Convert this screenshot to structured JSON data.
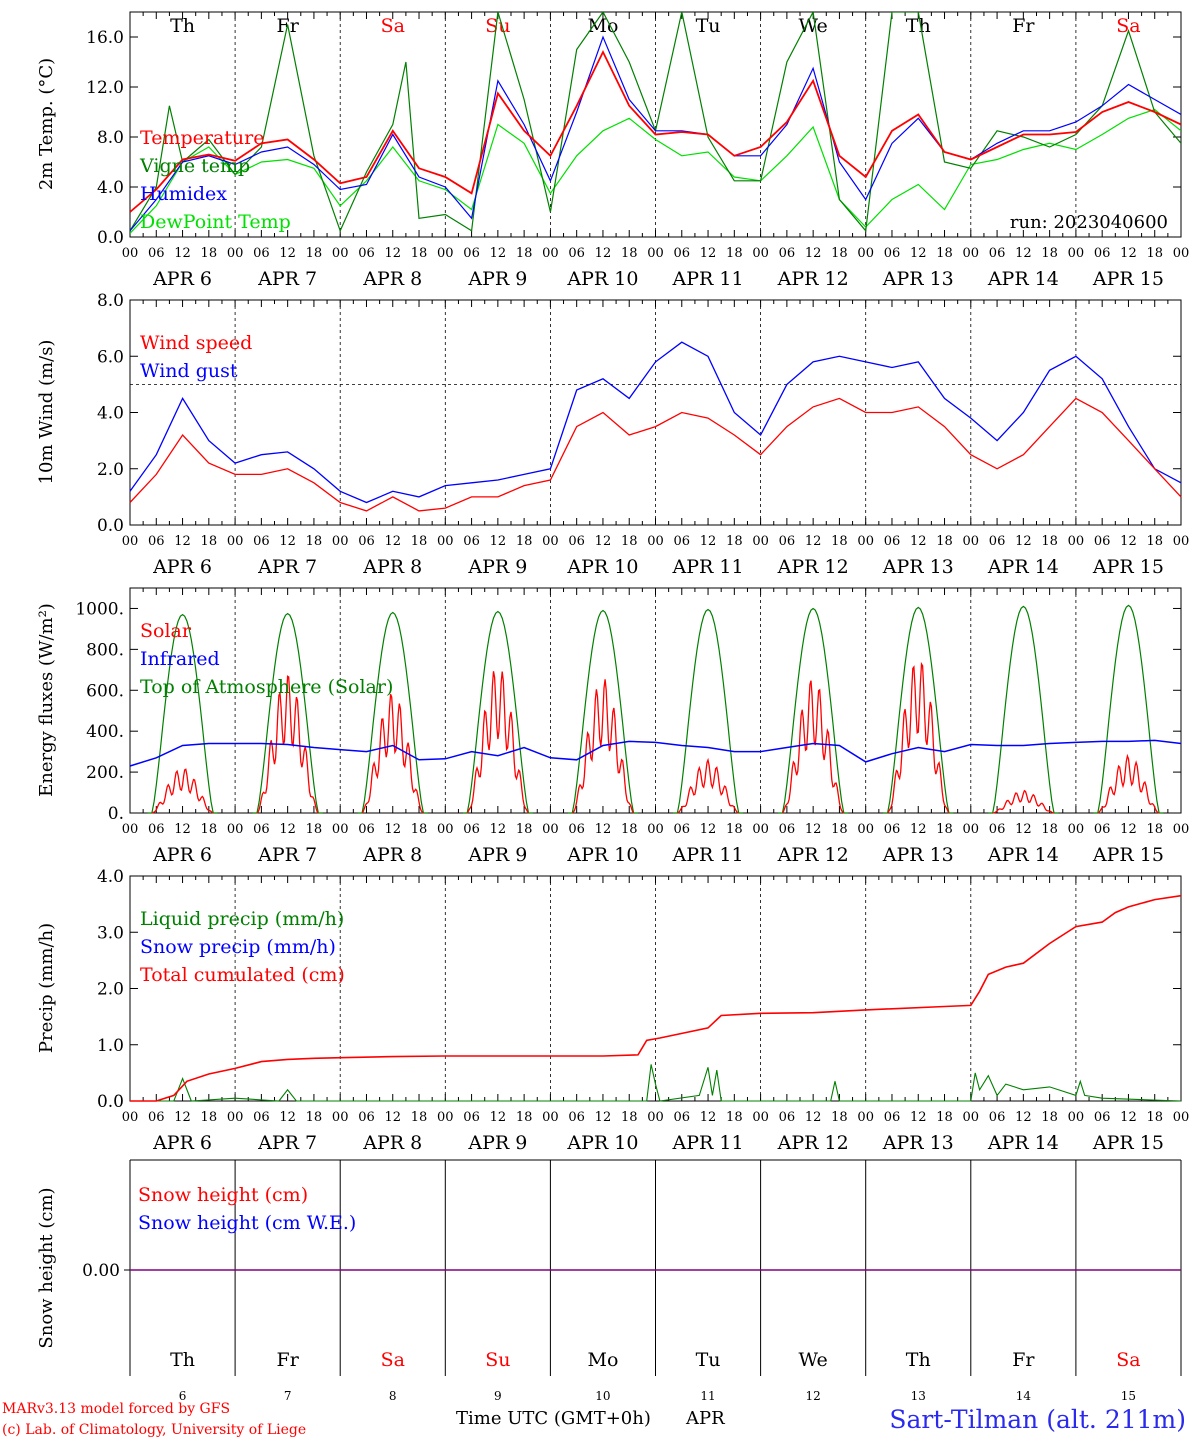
{
  "run_label": "run: 2023040600",
  "days": [
    {
      "dow": "Th",
      "date": "APR  6",
      "num": "6",
      "weekend": false
    },
    {
      "dow": "Fr",
      "date": "APR  7",
      "num": "7",
      "weekend": false
    },
    {
      "dow": "Sa",
      "date": "APR  8",
      "num": "8",
      "weekend": true
    },
    {
      "dow": "Su",
      "date": "APR  9",
      "num": "9",
      "weekend": true
    },
    {
      "dow": "Mo",
      "date": "APR 10",
      "num": "10",
      "weekend": false
    },
    {
      "dow": "Tu",
      "date": "APR 11",
      "num": "11",
      "weekend": false
    },
    {
      "dow": "We",
      "date": "APR 12",
      "num": "12",
      "weekend": false
    },
    {
      "dow": "Th",
      "date": "APR 13",
      "num": "13",
      "weekend": false
    },
    {
      "dow": "Fr",
      "date": "APR 14",
      "num": "14",
      "weekend": false
    },
    {
      "dow": "Sa",
      "date": "APR 15",
      "num": "15",
      "weekend": true
    }
  ],
  "hour_labels": [
    "00",
    "06",
    "12",
    "18"
  ],
  "colors": {
    "red": "#ff0000",
    "green": "#008000",
    "blue": "#0000ff",
    "lightgreen": "#00e000",
    "purple": "#800080",
    "weekend": "#ff0000"
  },
  "footer": {
    "credit1": "MARv3.13 model forced by GFS",
    "credit2": "(c) Lab. of Climatology, University of Liege",
    "axis_title": "Time UTC (GMT+0h)",
    "month": "APR",
    "station": "Sart-Tilman (alt. 211m)"
  },
  "chart_data": [
    {
      "type": "line",
      "ylabel": "2m Temp. (°C)",
      "ylim": [
        0,
        18
      ],
      "yticks": [
        "0.0",
        "4.0",
        "8.0",
        "12.0",
        "16.0"
      ],
      "x_unit": "hours since 2023-04-06 00 UTC",
      "legend": [
        {
          "label": "Temperature",
          "color": "#ff0000"
        },
        {
          "label": "Vigne temp",
          "color": "#008000"
        },
        {
          "label": "Humidex",
          "color": "#0000ff"
        },
        {
          "label": "DewPoint Temp",
          "color": "#00e000"
        }
      ],
      "series": [
        {
          "name": "Temperature",
          "color": "#ff0000",
          "x": [
            0,
            6,
            12,
            18,
            24,
            30,
            36,
            42,
            48,
            54,
            60,
            66,
            72,
            78,
            84,
            90,
            96,
            102,
            108,
            114,
            120,
            126,
            132,
            138,
            144,
            150,
            156,
            162,
            168,
            174,
            180,
            186,
            192,
            198,
            204,
            210,
            216,
            222,
            228,
            234,
            240
          ],
          "y": [
            2,
            3.8,
            6.2,
            6.6,
            6.1,
            7.5,
            7.8,
            6.2,
            4.3,
            4.8,
            8.5,
            5.5,
            4.8,
            3.5,
            11.5,
            8.5,
            6.5,
            10.5,
            14.8,
            10.5,
            8.2,
            8.4,
            8.2,
            6.5,
            7.2,
            9.2,
            12.5,
            6.5,
            4.8,
            8.5,
            9.8,
            6.8,
            6.2,
            7.2,
            8.2,
            8.2,
            8.4,
            10,
            10.8,
            10,
            9
          ]
        },
        {
          "name": "Vigne temp",
          "color": "#008000",
          "x": [
            0,
            6,
            9,
            12,
            18,
            24,
            30,
            36,
            42,
            48,
            54,
            60,
            63,
            66,
            72,
            78,
            84,
            90,
            96,
            102,
            108,
            114,
            120,
            126,
            132,
            138,
            144,
            150,
            156,
            162,
            168,
            174,
            180,
            186,
            192,
            198,
            204,
            210,
            216,
            222,
            228,
            234,
            240
          ],
          "y": [
            0.5,
            4,
            10.5,
            6,
            7.8,
            5,
            7.2,
            17,
            6.5,
            0.5,
            5.2,
            9,
            14,
            1.5,
            1.8,
            0.5,
            18,
            11,
            2,
            15,
            18,
            14,
            8.5,
            18,
            8,
            4.5,
            4.5,
            14,
            18,
            3,
            0.5,
            18,
            18,
            6,
            5.5,
            8.5,
            8,
            7.2,
            8.2,
            10.5,
            16.5,
            10,
            7.5
          ]
        },
        {
          "name": "Humidex",
          "color": "#0000ff",
          "x": [
            0,
            6,
            12,
            18,
            24,
            30,
            36,
            42,
            48,
            54,
            60,
            66,
            72,
            78,
            84,
            90,
            96,
            102,
            108,
            114,
            120,
            126,
            132,
            138,
            144,
            150,
            156,
            162,
            168,
            174,
            180,
            186,
            192,
            198,
            204,
            210,
            216,
            222,
            228,
            234,
            240
          ],
          "y": [
            0.5,
            3,
            6,
            6.5,
            5.8,
            6.8,
            7.2,
            5.8,
            3.8,
            4.2,
            8.2,
            4.8,
            4,
            1.5,
            12.5,
            9,
            4.5,
            10,
            16,
            11,
            8.5,
            8.5,
            8.2,
            6.5,
            6.5,
            9,
            13.5,
            6,
            3,
            7.5,
            9.5,
            6.8,
            6.2,
            7.5,
            8.5,
            8.5,
            9.2,
            10.5,
            12.2,
            11,
            9.8
          ]
        },
        {
          "name": "DewPoint Temp",
          "color": "#00e000",
          "x": [
            0,
            6,
            12,
            18,
            24,
            30,
            36,
            42,
            48,
            54,
            60,
            66,
            72,
            78,
            84,
            90,
            96,
            102,
            108,
            114,
            120,
            126,
            132,
            138,
            144,
            150,
            156,
            162,
            168,
            174,
            180,
            186,
            192,
            198,
            204,
            210,
            216,
            222,
            228,
            234,
            240
          ],
          "y": [
            0.3,
            2.5,
            6,
            7.2,
            5,
            6,
            6.2,
            5.5,
            2.5,
            4.5,
            7.2,
            4.5,
            3.8,
            2.2,
            9,
            7.5,
            3.5,
            6.5,
            8.5,
            9.5,
            7.8,
            6.5,
            6.8,
            4.8,
            4.5,
            6.5,
            8.8,
            3,
            0.8,
            3,
            4.2,
            2.2,
            5.8,
            6.2,
            7,
            7.5,
            7,
            8.2,
            9.5,
            10.2,
            8.5
          ]
        }
      ]
    },
    {
      "type": "line",
      "ylabel": "10m Wind (m/s)",
      "ylim": [
        0,
        8
      ],
      "yticks": [
        "0.0",
        "2.0",
        "4.0",
        "6.0",
        "8.0"
      ],
      "reference_line": 5,
      "legend": [
        {
          "label": "Wind speed",
          "color": "#ff0000"
        },
        {
          "label": "Wind gust",
          "color": "#0000ff"
        }
      ],
      "series": [
        {
          "name": "Wind speed",
          "color": "#ff0000",
          "x": [
            0,
            6,
            12,
            18,
            24,
            30,
            36,
            42,
            48,
            54,
            60,
            66,
            72,
            78,
            84,
            90,
            96,
            102,
            108,
            114,
            120,
            126,
            132,
            138,
            144,
            150,
            156,
            162,
            168,
            174,
            180,
            186,
            192,
            198,
            204,
            210,
            216,
            222,
            228,
            234,
            240
          ],
          "y": [
            0.8,
            1.8,
            3.2,
            2.2,
            1.8,
            1.8,
            2,
            1.5,
            0.8,
            0.5,
            1,
            0.5,
            0.6,
            1,
            1,
            1.4,
            1.6,
            3.5,
            4,
            3.2,
            3.5,
            4,
            3.8,
            3.2,
            2.5,
            3.5,
            4.2,
            4.5,
            4,
            4,
            4.2,
            3.5,
            2.5,
            2,
            2.5,
            3.5,
            4.5,
            4,
            3,
            2,
            1
          ]
        },
        {
          "name": "Wind gust",
          "color": "#0000ff",
          "x": [
            0,
            6,
            12,
            18,
            24,
            30,
            36,
            42,
            48,
            54,
            60,
            66,
            72,
            78,
            84,
            90,
            96,
            102,
            108,
            114,
            120,
            126,
            132,
            138,
            144,
            150,
            156,
            162,
            168,
            174,
            180,
            186,
            192,
            198,
            204,
            210,
            216,
            222,
            228,
            234,
            240
          ],
          "y": [
            1.2,
            2.5,
            4.5,
            3,
            2.2,
            2.5,
            2.6,
            2,
            1.2,
            0.8,
            1.2,
            1,
            1.4,
            1.5,
            1.6,
            1.8,
            2,
            4.8,
            5.2,
            4.5,
            5.8,
            6.5,
            6,
            4,
            3.2,
            5,
            5.8,
            6,
            5.8,
            5.6,
            5.8,
            4.5,
            3.8,
            3,
            4,
            5.5,
            6,
            5.2,
            3.5,
            2,
            1.5
          ]
        }
      ]
    },
    {
      "type": "line",
      "ylabel": "Energy fluxes (W/m²)",
      "ylim": [
        0,
        1100
      ],
      "yticks": [
        "0.",
        "200.",
        "400.",
        "600.",
        "800.",
        "1000."
      ],
      "legend": [
        {
          "label": "Solar",
          "color": "#ff0000"
        },
        {
          "label": "Infrared",
          "color": "#0000ff"
        },
        {
          "label": "Top of Atmosphere (Solar)",
          "color": "#008000"
        }
      ],
      "top_of_atmosphere_daily_peaks": [
        970,
        975,
        980,
        985,
        990,
        995,
        1000,
        1005,
        1010,
        1015
      ],
      "solar_daily_peaks": [
        220,
        680,
        590,
        720,
        660,
        260,
        660,
        760,
        110,
        280
      ],
      "series": [
        {
          "name": "Infrared",
          "color": "#0000ff",
          "x": [
            0,
            6,
            12,
            18,
            24,
            30,
            36,
            42,
            48,
            54,
            60,
            66,
            72,
            78,
            84,
            90,
            96,
            102,
            108,
            114,
            120,
            126,
            132,
            138,
            144,
            150,
            156,
            162,
            168,
            174,
            180,
            186,
            192,
            198,
            204,
            210,
            216,
            222,
            228,
            234,
            240
          ],
          "y": [
            230,
            270,
            330,
            340,
            340,
            340,
            335,
            320,
            310,
            300,
            330,
            260,
            265,
            300,
            280,
            320,
            270,
            260,
            330,
            350,
            345,
            330,
            320,
            300,
            300,
            320,
            340,
            330,
            250,
            290,
            320,
            300,
            335,
            330,
            330,
            340,
            345,
            350,
            350,
            355,
            340
          ]
        }
      ]
    },
    {
      "type": "line",
      "ylabel": "Precip (mm/h)",
      "ylim": [
        0,
        4
      ],
      "yticks": [
        "0.0",
        "1.0",
        "2.0",
        "3.0",
        "4.0"
      ],
      "legend": [
        {
          "label": "Liquid precip (mm/h)",
          "color": "#008000"
        },
        {
          "label": "Snow precip (mm/h)",
          "color": "#0000ff"
        },
        {
          "label": "Total cumulated (cm)",
          "color": "#ff0000"
        }
      ],
      "series": [
        {
          "name": "Total cumulated (cm)",
          "color": "#ff0000",
          "x": [
            0,
            6,
            10,
            13,
            18,
            24,
            30,
            36,
            42,
            48,
            60,
            72,
            84,
            96,
            108,
            116,
            118,
            121,
            132,
            135,
            144,
            156,
            168,
            186,
            192,
            194,
            196,
            200,
            204,
            210,
            216,
            222,
            225,
            228,
            234,
            240
          ],
          "y": [
            0,
            0,
            0.1,
            0.35,
            0.48,
            0.58,
            0.7,
            0.74,
            0.76,
            0.77,
            0.79,
            0.8,
            0.8,
            0.8,
            0.8,
            0.82,
            1.08,
            1.12,
            1.3,
            1.52,
            1.56,
            1.57,
            1.62,
            1.68,
            1.7,
            1.95,
            2.25,
            2.38,
            2.45,
            2.8,
            3.1,
            3.18,
            3.35,
            3.45,
            3.58,
            3.65
          ]
        },
        {
          "name": "Liquid precip (mm/h)",
          "color": "#008000",
          "x": [
            0,
            10,
            12,
            14,
            24,
            34,
            36,
            38,
            118,
            119,
            120,
            121,
            130,
            132,
            133,
            134,
            135,
            160,
            161,
            162,
            192,
            193,
            194,
            196,
            198,
            200,
            204,
            210,
            216,
            217,
            218,
            222,
            240
          ],
          "y": [
            0,
            0,
            0.4,
            0,
            0.05,
            0,
            0.2,
            0,
            0,
            0.65,
            0.3,
            0,
            0.1,
            0.6,
            0.1,
            0.55,
            0,
            0,
            0.35,
            0,
            0,
            0.5,
            0.2,
            0.45,
            0.1,
            0.3,
            0.2,
            0.25,
            0.1,
            0.35,
            0.1,
            0.05,
            0
          ]
        }
      ]
    },
    {
      "type": "line",
      "ylabel": "Snow height (cm)",
      "yticks": [
        "0.00"
      ],
      "legend": [
        {
          "label": "Snow height (cm)",
          "color": "#ff0000"
        },
        {
          "label": "Snow height (cm W.E.)",
          "color": "#0000ff"
        }
      ],
      "series": [
        {
          "name": "Snow height (cm)",
          "color": "#ff0000",
          "x": [
            0,
            240
          ],
          "y": [
            0,
            0
          ]
        },
        {
          "name": "Snow height (cm W.E.)",
          "color": "#0000ff",
          "x": [
            0,
            240
          ],
          "y": [
            0,
            0
          ]
        }
      ]
    }
  ]
}
